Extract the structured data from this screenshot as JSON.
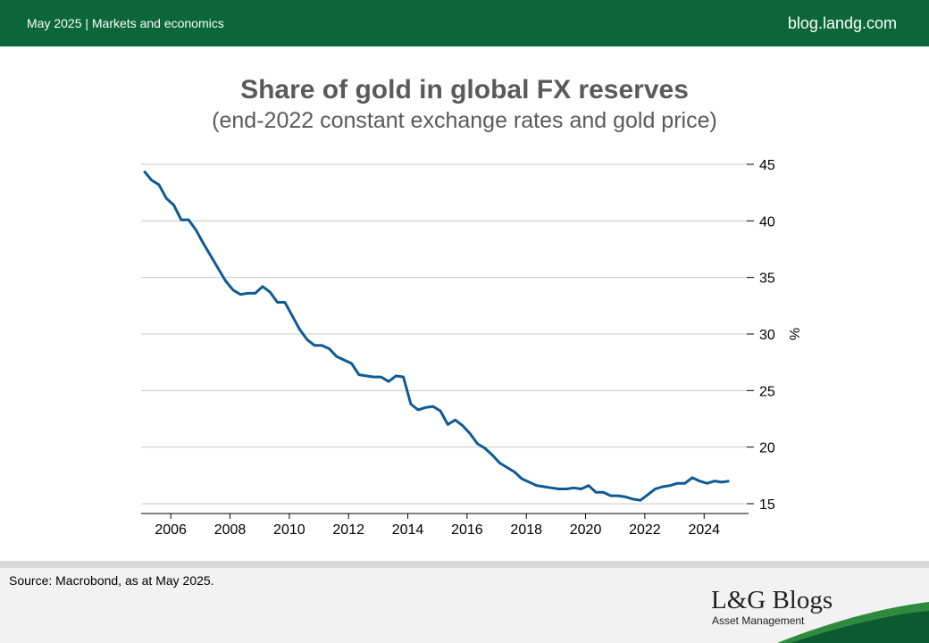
{
  "header": {
    "left_text": "May 2025 | Markets and economics",
    "right_text": "blog.landg.com"
  },
  "footer": {
    "source": "Source: Macrobond, as at May 2025.",
    "logo_title": "L&G Blogs",
    "logo_subtitle": "Asset Management"
  },
  "colors": {
    "header_bg": "#0b6639",
    "line": "#0e5a94",
    "swoosh_dark": "#0b5a32",
    "swoosh_light": "#2e8b3e"
  },
  "chart_data": {
    "type": "line",
    "title": "Share of gold in global FX reserves",
    "subtitle": "(end-2022 constant exchange rates and gold price)",
    "xlabel": "",
    "ylabel": "%",
    "xlim": [
      2005.0,
      2025.5
    ],
    "ylim": [
      14.5,
      45.5
    ],
    "x_ticks": [
      2006,
      2008,
      2010,
      2012,
      2014,
      2016,
      2018,
      2020,
      2022,
      2024
    ],
    "y_ticks": [
      15,
      20,
      25,
      30,
      35,
      40,
      45
    ],
    "grid": "horizontal",
    "y_axis_side": "right",
    "series": [
      {
        "x": [
          2005.1,
          2005.35,
          2005.6,
          2005.85,
          2006.1,
          2006.35,
          2006.6,
          2006.85,
          2007.1,
          2007.35,
          2007.6,
          2007.85,
          2008.1,
          2008.35,
          2008.6,
          2008.85,
          2009.1,
          2009.35,
          2009.6,
          2009.85,
          2010.1,
          2010.35,
          2010.6,
          2010.85,
          2011.1,
          2011.35,
          2011.6,
          2011.85,
          2012.1,
          2012.35,
          2012.6,
          2012.85,
          2013.1,
          2013.35,
          2013.6,
          2013.85,
          2014.1,
          2014.35,
          2014.6,
          2014.85,
          2015.1,
          2015.35,
          2015.6,
          2015.85,
          2016.1,
          2016.35,
          2016.6,
          2016.85,
          2017.1,
          2017.35,
          2017.6,
          2017.85,
          2018.1,
          2018.35,
          2018.6,
          2018.85,
          2019.1,
          2019.35,
          2019.6,
          2019.85,
          2020.1,
          2020.35,
          2020.6,
          2020.85,
          2021.1,
          2021.35,
          2021.6,
          2021.85,
          2022.1,
          2022.35,
          2022.6,
          2022.85,
          2023.1,
          2023.35,
          2023.6,
          2023.85,
          2024.1,
          2024.35,
          2024.6,
          2024.85
        ],
        "values": [
          44.4,
          43.6,
          43.2,
          42.0,
          41.4,
          40.1,
          40.1,
          39.2,
          38.0,
          36.9,
          35.8,
          34.7,
          33.9,
          33.5,
          33.6,
          33.6,
          34.2,
          33.7,
          32.8,
          32.8,
          31.6,
          30.4,
          29.5,
          29.0,
          29.0,
          28.7,
          28.0,
          27.7,
          27.4,
          26.4,
          26.3,
          26.2,
          26.2,
          25.8,
          26.3,
          26.2,
          23.8,
          23.3,
          23.5,
          23.6,
          23.2,
          22.0,
          22.4,
          21.9,
          21.2,
          20.3,
          19.9,
          19.3,
          18.6,
          18.2,
          17.8,
          17.2,
          16.9,
          16.6,
          16.5,
          16.4,
          16.3,
          16.3,
          16.4,
          16.3,
          16.6,
          16.0,
          16.0,
          15.7,
          15.7,
          15.6,
          15.4,
          15.3,
          15.8,
          16.3,
          16.5,
          16.6,
          16.8,
          16.8,
          17.3,
          17.0,
          16.8,
          17.0,
          16.9,
          17.0
        ]
      }
    ]
  }
}
